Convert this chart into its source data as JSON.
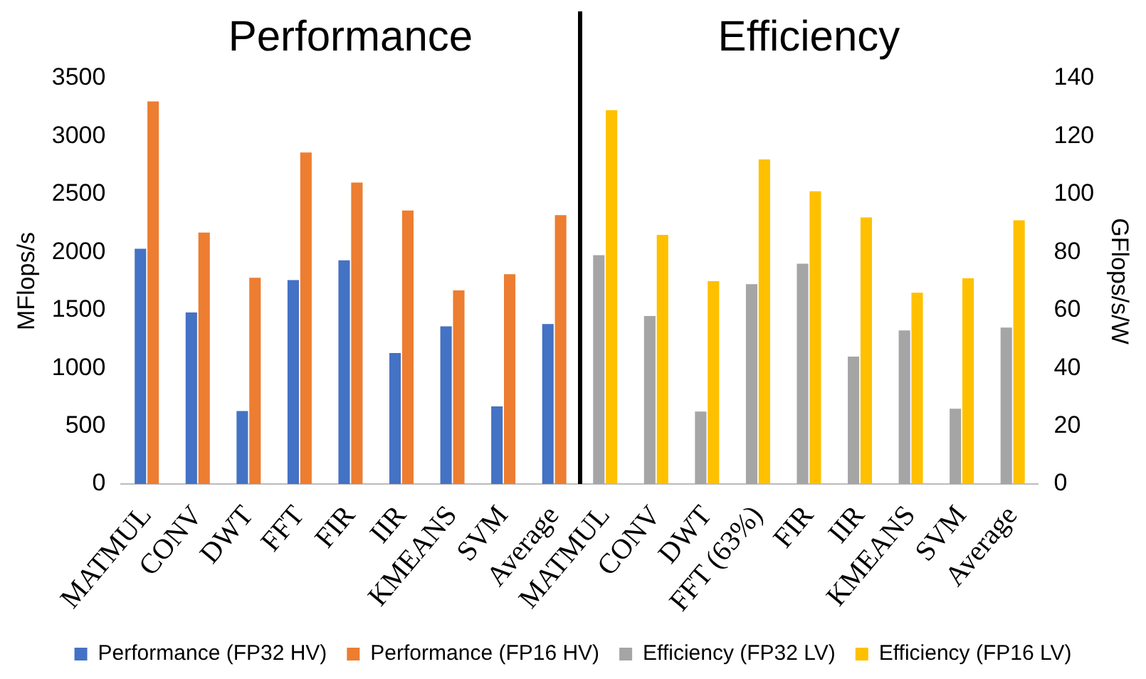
{
  "chart_data": {
    "type": "bar",
    "annotations": [
      "Performance",
      "Efficiency"
    ],
    "ylabel": "MFlops/s",
    "y2label": "GFlops/s/W",
    "categories": [
      "MATMUL",
      "CONV",
      "DWT",
      "FFT",
      "FIR",
      "IIR",
      "KMEANS",
      "SVM",
      "Average",
      "MATMUL",
      "CONV",
      "DWT",
      "FFT (63%)",
      "FIR",
      "IIR",
      "KMEANS",
      "SVM",
      "Average"
    ],
    "series": [
      {
        "name": "Performance (FP32 HV)",
        "color": "#4472c4",
        "values": [
          2030,
          1480,
          630,
          1760,
          1930,
          1130,
          1360,
          670,
          1380,
          null,
          null,
          null,
          null,
          null,
          null,
          null,
          null,
          null
        ]
      },
      {
        "name": "Performance (FP16 HV)",
        "color": "#ed7d31",
        "values": [
          3300,
          2170,
          1780,
          2860,
          2600,
          2360,
          1670,
          1810,
          2320,
          null,
          null,
          null,
          null,
          null,
          null,
          null,
          null,
          null
        ]
      },
      {
        "name": "Efficiency (FP32 LV)",
        "color": "#a5a5a5",
        "axis": "y2",
        "values": [
          null,
          null,
          null,
          null,
          null,
          null,
          null,
          null,
          null,
          79,
          58,
          25,
          69,
          76,
          44,
          53,
          26,
          54
        ]
      },
      {
        "name": "Efficiency (FP16 LV)",
        "color": "#ffc000",
        "axis": "y2",
        "values": [
          null,
          null,
          null,
          null,
          null,
          null,
          null,
          null,
          null,
          129,
          86,
          70,
          112,
          101,
          92,
          66,
          71,
          91
        ]
      }
    ],
    "ylim": [
      0,
      3500
    ],
    "yticks": [
      0,
      500,
      1000,
      1500,
      2000,
      2500,
      3000,
      3500
    ],
    "y2lim": [
      0,
      140
    ],
    "y2ticks": [
      0,
      20,
      40,
      60,
      80,
      100,
      120,
      140
    ],
    "grid": false,
    "legend": "bottom"
  }
}
